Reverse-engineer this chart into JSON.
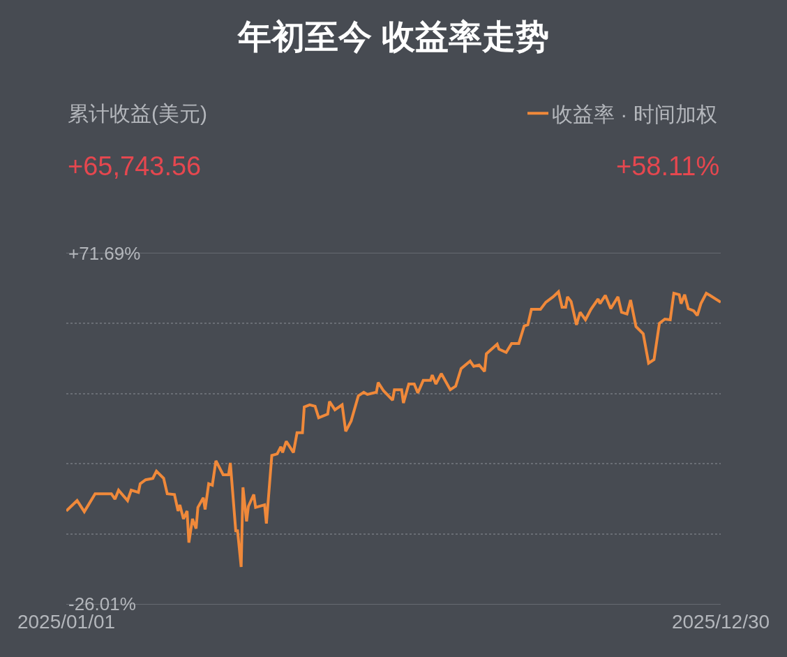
{
  "chart_data": {
    "type": "line",
    "title": "年初至今 收益率走势",
    "annotations": [
      "累计收益(美元)",
      "+65,743.56",
      "+58.11%"
    ],
    "legend": "top right",
    "grid": "y",
    "marker": "none",
    "line_style": "solid",
    "xlim": [
      "2025-01-01",
      "2025-12-30"
    ],
    "xticks": [
      {
        "value": "2025-01-01",
        "label": "2025/01/01"
      },
      {
        "value": "2025-12-30",
        "label": "2025/12/30"
      }
    ],
    "ylim": [
      -26.01,
      71.69
    ],
    "yticks": [
      {
        "value": 71.69,
        "label": "+71.69%"
      },
      {
        "value": 52.15,
        "label": null
      },
      {
        "value": 32.61,
        "label": null
      },
      {
        "value": 13.07,
        "label": null
      },
      {
        "value": -6.47,
        "label": null
      },
      {
        "value": -26.01,
        "label": "-26.01%"
      }
    ],
    "x": [
      "2025-01-01",
      "2025-01-07",
      "2025-01-11",
      "2025-01-17",
      "2025-01-26",
      "2025-01-28",
      "2025-01-30",
      "2025-02-04",
      "2025-02-06",
      "2025-02-10",
      "2025-02-11",
      "2025-02-14",
      "2025-02-18",
      "2025-02-20",
      "2025-02-24",
      "2025-02-26",
      "2025-03-02",
      "2025-03-04",
      "2025-03-05",
      "2025-03-07",
      "2025-03-09",
      "2025-03-10",
      "2025-03-12",
      "2025-03-14",
      "2025-03-15",
      "2025-03-18",
      "2025-03-19",
      "2025-03-21",
      "2025-03-23",
      "2025-03-25",
      "2025-03-29",
      "2025-04-01",
      "2025-04-02",
      "2025-04-05",
      "2025-04-06",
      "2025-04-08",
      "2025-04-09",
      "2025-04-11",
      "2025-04-12",
      "2025-04-15",
      "2025-04-16",
      "2025-04-21",
      "2025-04-22",
      "2025-04-25",
      "2025-04-28",
      "2025-04-30",
      "2025-05-01",
      "2025-05-03",
      "2025-05-07",
      "2025-05-09",
      "2025-05-12",
      "2025-05-13",
      "2025-05-16",
      "2025-05-19",
      "2025-05-21",
      "2025-05-26",
      "2025-05-27",
      "2025-05-30",
      "2025-06-03",
      "2025-06-05",
      "2025-06-08",
      "2025-06-12",
      "2025-06-15",
      "2025-06-17",
      "2025-06-22",
      "2025-06-23",
      "2025-06-26",
      "2025-07-01",
      "2025-07-02",
      "2025-07-06",
      "2025-07-07",
      "2025-07-10",
      "2025-07-13",
      "2025-07-15",
      "2025-07-18",
      "2025-07-22",
      "2025-07-23",
      "2025-07-25",
      "2025-07-28",
      "2025-08-02",
      "2025-08-05",
      "2025-08-08",
      "2025-08-13",
      "2025-08-15",
      "2025-08-18",
      "2025-08-21",
      "2025-08-22",
      "2025-08-28",
      "2025-08-29",
      "2025-09-02",
      "2025-09-05",
      "2025-09-09",
      "2025-09-12",
      "2025-09-14",
      "2025-09-16",
      "2025-09-21",
      "2025-09-24",
      "2025-09-28",
      "2025-10-01",
      "2025-10-03",
      "2025-10-05",
      "2025-10-06",
      "2025-10-08",
      "2025-10-11",
      "2025-10-13",
      "2025-10-16",
      "2025-10-19",
      "2025-10-23",
      "2025-10-24",
      "2025-10-27",
      "2025-10-30",
      "2025-11-03",
      "2025-11-05",
      "2025-11-08",
      "2025-11-10",
      "2025-11-13",
      "2025-11-17",
      "2025-11-20",
      "2025-11-23",
      "2025-11-26",
      "2025-11-29",
      "2025-12-02",
      "2025-12-04",
      "2025-12-07",
      "2025-12-08",
      "2025-12-10",
      "2025-12-12",
      "2025-12-15",
      "2025-12-17",
      "2025-12-19",
      "2025-12-22",
      "2025-12-24",
      "2025-12-30"
    ],
    "series": [
      {
        "name": "收益率 · 时间加权",
        "color": "#f0893a",
        "values": [
          -0.1,
          2.8,
          -0.3,
          4.7,
          4.7,
          3.2,
          5.7,
          2.8,
          5.7,
          5.1,
          7.5,
          8.6,
          9.0,
          11.0,
          9.0,
          4.7,
          4.5,
          -0.1,
          1.6,
          -2.3,
          -0.1,
          -8.9,
          -2.3,
          -5.0,
          0.9,
          3.6,
          0.3,
          7.5,
          7.1,
          13.9,
          10.0,
          10.0,
          13.3,
          -5.6,
          -5.6,
          -15.7,
          6.5,
          -3.0,
          1.2,
          4.5,
          0.9,
          1.6,
          -3.6,
          15.4,
          15.8,
          17.8,
          16.2,
          19.3,
          16.2,
          21.7,
          21.7,
          28.9,
          29.5,
          29.1,
          25.9,
          26.9,
          30.4,
          28.1,
          29.5,
          22.1,
          25.0,
          32.0,
          33.0,
          32.4,
          33.0,
          35.7,
          33.4,
          30.8,
          33.7,
          33.7,
          30.0,
          35.3,
          35.3,
          32.8,
          36.3,
          36.3,
          37.8,
          35.3,
          38.2,
          33.7,
          34.7,
          39.6,
          41.7,
          40.2,
          40.6,
          38.8,
          43.7,
          46.4,
          45.0,
          44.1,
          46.6,
          46.6,
          51.5,
          51.8,
          56.1,
          56.1,
          58.1,
          59.6,
          61.0,
          56.7,
          56.7,
          59.6,
          58.3,
          51.8,
          55.3,
          53.2,
          56.1,
          59.0,
          57.7,
          60.0,
          56.3,
          59.6,
          55.3,
          54.8,
          58.7,
          51.3,
          49.3,
          41.1,
          42.1,
          52.2,
          53.4,
          53.2,
          60.6,
          60.2,
          57.7,
          60.2,
          56.3,
          55.7,
          54.4,
          57.7,
          60.6,
          60.0,
          58.1
        ]
      }
    ]
  }
}
